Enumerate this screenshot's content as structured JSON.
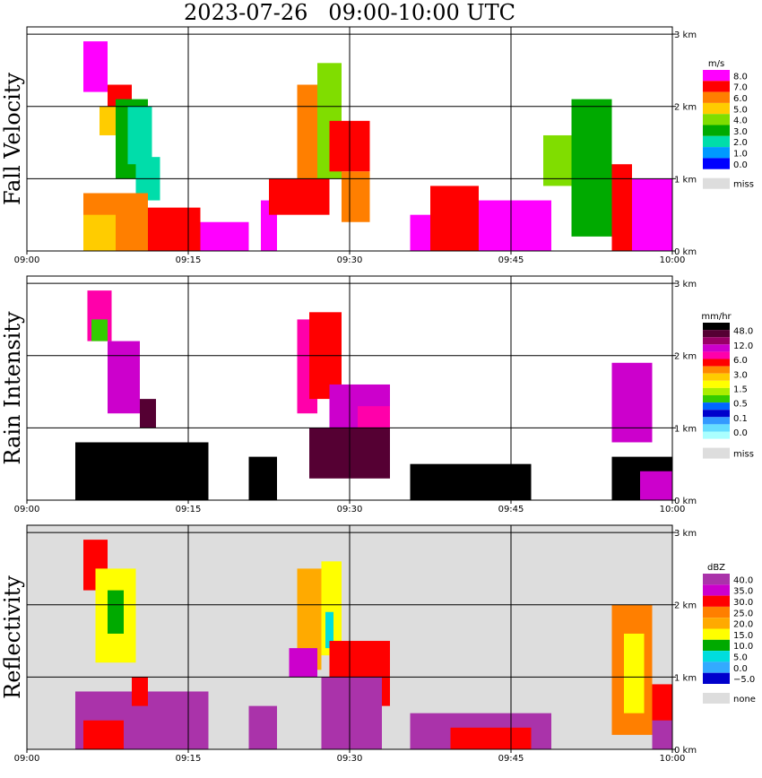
{
  "chart_data": {
    "title": "2023-07-26   09:00-10:00 UTC",
    "x_ticks": [
      "09:00",
      "09:15",
      "09:30",
      "09:45",
      "10:00"
    ],
    "y_ticks": [
      "0 km",
      "1 km",
      "2 km",
      "3 km"
    ],
    "xlim": [
      "09:00",
      "10:00"
    ],
    "ylim_km": [
      0,
      3.1
    ],
    "grid": true,
    "panels": [
      {
        "name": "Fall Velocity",
        "type": "heatmap",
        "background": "#ffffff",
        "legend_unit": "m/s",
        "legend_labels": [
          "8.0",
          "7.0",
          "6.0",
          "5.0",
          "4.0",
          "3.0",
          "2.0",
          "1.0",
          "0.0"
        ],
        "legend_colors": [
          "#ff00ff",
          "#ff0000",
          "#ff7f00",
          "#ffcc00",
          "#80dd00",
          "#00aa00",
          "#00ddaa",
          "#0099ff",
          "#0000ff"
        ],
        "miss_label": "miss",
        "miss_color": "#dddddd",
        "cells": [
          {
            "t0": 9.14,
            "t1": 9.2,
            "z0": 2.2,
            "z1": 2.9,
            "c": 8
          },
          {
            "t0": 9.2,
            "t1": 9.26,
            "z0": 2.0,
            "z1": 2.3,
            "c": 7
          },
          {
            "t0": 9.22,
            "t1": 9.3,
            "z0": 1.0,
            "z1": 2.1,
            "c": 3
          },
          {
            "t0": 9.25,
            "t1": 9.31,
            "z0": 1.2,
            "z1": 2.0,
            "c": 2
          },
          {
            "t0": 9.27,
            "t1": 9.33,
            "z0": 0.7,
            "z1": 1.3,
            "c": 2
          },
          {
            "t0": 9.18,
            "t1": 9.22,
            "z0": 1.6,
            "z1": 2.0,
            "c": 5
          },
          {
            "t0": 9.14,
            "t1": 9.3,
            "z0": 0.0,
            "z1": 0.8,
            "c": 6
          },
          {
            "t0": 9.14,
            "t1": 9.22,
            "z0": 0.0,
            "z1": 0.5,
            "c": 5
          },
          {
            "t0": 9.3,
            "t1": 9.43,
            "z0": 0.0,
            "z1": 0.6,
            "c": 7
          },
          {
            "t0": 9.43,
            "t1": 9.55,
            "z0": 0.0,
            "z1": 0.4,
            "c": 8
          },
          {
            "t0": 9.58,
            "t1": 9.62,
            "z0": 0.0,
            "z1": 0.7,
            "c": 8
          },
          {
            "t0": 9.67,
            "t1": 9.72,
            "z0": 1.0,
            "z1": 2.3,
            "c": 6
          },
          {
            "t0": 9.72,
            "t1": 9.78,
            "z0": 1.0,
            "z1": 2.6,
            "c": 4
          },
          {
            "t0": 9.75,
            "t1": 9.85,
            "z0": 1.1,
            "z1": 1.8,
            "c": 7
          },
          {
            "t0": 9.6,
            "t1": 9.75,
            "z0": 0.5,
            "z1": 1.0,
            "c": 7
          },
          {
            "t0": 9.78,
            "t1": 9.85,
            "z0": 0.4,
            "z1": 1.1,
            "c": 6
          },
          {
            "t0": 9.95,
            "t1": 10.03,
            "z0": 0.0,
            "z1": 0.5,
            "c": 8
          },
          {
            "t0": 10.0,
            "t1": 10.12,
            "z0": 0.0,
            "z1": 0.9,
            "c": 7
          },
          {
            "t0": 10.12,
            "t1": 10.3,
            "z0": 0.0,
            "z1": 0.7,
            "c": 8
          },
          {
            "t0": 10.28,
            "t1": 10.35,
            "z0": 0.9,
            "z1": 1.6,
            "c": 4
          },
          {
            "t0": 10.35,
            "t1": 10.45,
            "z0": 0.2,
            "z1": 2.1,
            "c": 3
          },
          {
            "t0": 10.45,
            "t1": 10.5,
            "z0": 0.0,
            "z1": 1.2,
            "c": 7
          },
          {
            "t0": 10.5,
            "t1": 10.6,
            "z0": 0.0,
            "z1": 1.0,
            "c": 8
          }
        ]
      },
      {
        "name": "Rain Intensity",
        "type": "heatmap",
        "background": "#ffffff",
        "legend_unit": "mm/hr",
        "legend_labels": [
          "48.0",
          "12.0",
          "6.0",
          "3.0",
          "1.5",
          "0.5",
          "0.1",
          "0.0"
        ],
        "legend_colors": [
          "#000000",
          "#550033",
          "#990066",
          "#cc00cc",
          "#ff00aa",
          "#ff0000",
          "#ff8800",
          "#ffcc00",
          "#ffff00",
          "#aaee00",
          "#33cc00",
          "#0066ff",
          "#0000cc",
          "#3399ff",
          "#66ddff",
          "#aaffff"
        ],
        "miss_label": "miss",
        "miss_color": "#dddddd",
        "cells": [
          {
            "t0": 9.15,
            "t1": 9.21,
            "z0": 2.2,
            "z1": 2.9,
            "c": 11
          },
          {
            "t0": 9.16,
            "t1": 9.2,
            "z0": 2.2,
            "z1": 2.5,
            "c": 5
          },
          {
            "t0": 9.2,
            "t1": 9.28,
            "z0": 1.2,
            "z1": 2.2,
            "c": 12
          },
          {
            "t0": 9.12,
            "t1": 9.45,
            "z0": 0.0,
            "z1": 0.8,
            "c": 15
          },
          {
            "t0": 9.28,
            "t1": 9.32,
            "z0": 1.0,
            "z1": 1.4,
            "c": 14
          },
          {
            "t0": 9.67,
            "t1": 9.72,
            "z0": 1.2,
            "z1": 2.5,
            "c": 11
          },
          {
            "t0": 9.7,
            "t1": 9.78,
            "z0": 1.4,
            "z1": 2.6,
            "c": 10
          },
          {
            "t0": 9.75,
            "t1": 9.9,
            "z0": 1.0,
            "z1": 1.6,
            "c": 12
          },
          {
            "t0": 9.82,
            "t1": 9.9,
            "z0": 0.8,
            "z1": 1.3,
            "c": 11
          },
          {
            "t0": 9.55,
            "t1": 9.62,
            "z0": 0.0,
            "z1": 0.6,
            "c": 15
          },
          {
            "t0": 9.7,
            "t1": 9.9,
            "z0": 0.3,
            "z1": 1.0,
            "c": 14
          },
          {
            "t0": 9.95,
            "t1": 10.05,
            "z0": 0.0,
            "z1": 0.5,
            "c": 15
          },
          {
            "t0": 10.05,
            "t1": 10.25,
            "z0": 0.0,
            "z1": 0.5,
            "c": 15
          },
          {
            "t0": 10.45,
            "t1": 10.6,
            "z0": 0.0,
            "z1": 0.6,
            "c": 15
          },
          {
            "t0": 10.45,
            "t1": 10.55,
            "z0": 0.8,
            "z1": 1.9,
            "c": 12
          },
          {
            "t0": 10.52,
            "t1": 10.6,
            "z0": 0.0,
            "z1": 0.4,
            "c": 12
          }
        ]
      },
      {
        "name": "Reflectivity",
        "type": "heatmap",
        "background": "#dddddd",
        "legend_unit": "dBZ",
        "legend_labels": [
          "40.0",
          "35.0",
          "30.0",
          "25.0",
          "20.0",
          "15.0",
          "10.0",
          "5.0",
          "0.0",
          "−5.0"
        ],
        "legend_colors": [
          "#aa33aa",
          "#cc00cc",
          "#ff0000",
          "#ff7f00",
          "#ffaa00",
          "#ffff00",
          "#00aa00",
          "#00dddd",
          "#33aaff",
          "#0000cc"
        ],
        "miss_label": "none",
        "miss_color": "#dddddd",
        "cells": [
          {
            "t0": 9.14,
            "t1": 9.2,
            "z0": 2.2,
            "z1": 2.9,
            "c": 7
          },
          {
            "t0": 9.17,
            "t1": 9.27,
            "z0": 1.2,
            "z1": 2.5,
            "c": 4
          },
          {
            "t0": 9.2,
            "t1": 9.24,
            "z0": 1.6,
            "z1": 2.2,
            "c": 3
          },
          {
            "t0": 9.12,
            "t1": 9.45,
            "z0": 0.0,
            "z1": 0.8,
            "c": 9
          },
          {
            "t0": 9.14,
            "t1": 9.24,
            "z0": 0.0,
            "z1": 0.4,
            "c": 7
          },
          {
            "t0": 9.26,
            "t1": 9.3,
            "z0": 0.6,
            "z1": 1.0,
            "c": 7
          },
          {
            "t0": 9.67,
            "t1": 9.73,
            "z0": 1.1,
            "z1": 2.5,
            "c": 5
          },
          {
            "t0": 9.73,
            "t1": 9.78,
            "z0": 1.3,
            "z1": 2.6,
            "c": 4
          },
          {
            "t0": 9.74,
            "t1": 9.76,
            "z0": 1.4,
            "z1": 1.9,
            "c": 2
          },
          {
            "t0": 9.75,
            "t1": 9.9,
            "z0": 0.6,
            "z1": 1.5,
            "c": 7
          },
          {
            "t0": 9.65,
            "t1": 9.72,
            "z0": 1.0,
            "z1": 1.4,
            "c": 8
          },
          {
            "t0": 9.73,
            "t1": 9.88,
            "z0": 0.0,
            "z1": 1.0,
            "c": 9
          },
          {
            "t0": 9.55,
            "t1": 9.62,
            "z0": 0.0,
            "z1": 0.6,
            "c": 9
          },
          {
            "t0": 9.95,
            "t1": 10.3,
            "z0": 0.0,
            "z1": 0.5,
            "c": 9
          },
          {
            "t0": 10.05,
            "t1": 10.25,
            "z0": 0.0,
            "z1": 0.3,
            "c": 7
          },
          {
            "t0": 10.45,
            "t1": 10.55,
            "z0": 0.2,
            "z1": 2.0,
            "c": 6
          },
          {
            "t0": 10.48,
            "t1": 10.53,
            "z0": 0.5,
            "z1": 1.6,
            "c": 4
          },
          {
            "t0": 10.55,
            "t1": 10.6,
            "z0": 0.0,
            "z1": 0.9,
            "c": 7
          },
          {
            "t0": 10.55,
            "t1": 10.62,
            "z0": 0.0,
            "z1": 0.4,
            "c": 9
          }
        ]
      }
    ]
  }
}
